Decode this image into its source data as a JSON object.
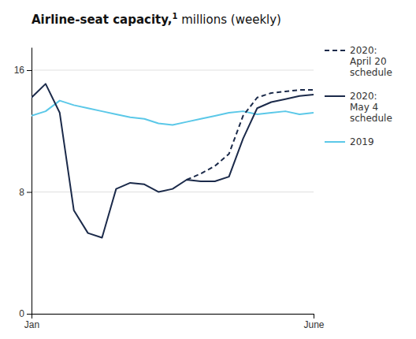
{
  "chart_data": {
    "type": "line",
    "title": "Airline-seat capacity,",
    "annotations": [
      "1"
    ],
    "subtitle": " millions (weekly)",
    "series": [
      {
        "name": "2019",
        "color": "#5bc8e8",
        "line_style": "solid",
        "x": [
          0,
          1,
          2,
          3,
          4,
          5,
          6,
          7,
          8,
          9,
          10,
          11,
          12,
          13,
          14,
          15,
          16,
          17,
          18,
          19,
          20
        ],
        "values": [
          13.0,
          13.3,
          14.0,
          13.7,
          13.5,
          13.3,
          13.1,
          12.9,
          12.8,
          12.5,
          12.4,
          12.6,
          12.8,
          13.0,
          13.2,
          13.3,
          13.1,
          13.2,
          13.3,
          13.1,
          13.2
        ]
      },
      {
        "name": "2020:\nMay 4\nschedule",
        "color": "#1b2a4a",
        "line_style": "solid",
        "x": [
          0,
          1,
          2,
          3,
          4,
          5,
          6,
          7,
          8,
          9,
          10,
          11,
          12,
          13,
          14,
          15,
          16,
          17,
          18,
          19,
          20
        ],
        "values": [
          14.2,
          15.1,
          13.2,
          6.8,
          5.3,
          5.0,
          8.2,
          8.6,
          8.5,
          8.0,
          8.2,
          8.8,
          8.7,
          8.7,
          9.0,
          11.5,
          13.5,
          13.9,
          14.1,
          14.3,
          14.4
        ]
      },
      {
        "name": "2020:\nApril 20\nschedule",
        "color": "#1b2a4a",
        "line_style": "dashed",
        "x": [
          11,
          12,
          13,
          14,
          15,
          16,
          17,
          18,
          19,
          20
        ],
        "values": [
          8.8,
          9.2,
          9.7,
          10.5,
          13.0,
          14.2,
          14.5,
          14.6,
          14.7,
          14.7
        ]
      }
    ],
    "xlim": [
      0,
      20
    ],
    "xticks": [
      {
        "value": 0,
        "label": "Jan"
      },
      {
        "value": 20,
        "label": "June"
      }
    ],
    "ylim": [
      0,
      17.5
    ],
    "yticks": [
      0,
      8,
      16
    ],
    "grid": true,
    "legend": "right"
  }
}
